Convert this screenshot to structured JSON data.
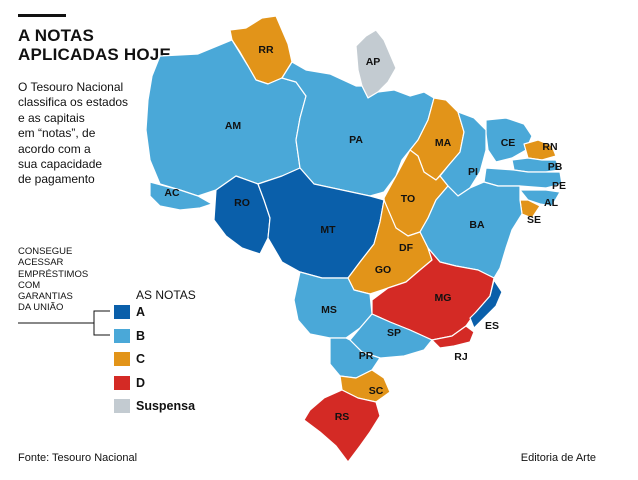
{
  "title": [
    "A NOTAS",
    "APLICADAS HOJE"
  ],
  "description": [
    "O Tesouro Nacional",
    "classifica os estados",
    "e as capitais",
    "em “notas”, de",
    "acordo com a",
    "sua capacidade",
    "de pagamento"
  ],
  "note": [
    "CONSEGUE",
    "ACESSAR",
    "EMPRÉSTIMOS",
    "COM",
    "GARANTIAS",
    "DA UNIÃO"
  ],
  "legend": {
    "title": "AS NOTAS",
    "items": [
      {
        "label": "A",
        "color": "#0a5faa"
      },
      {
        "label": "B",
        "color": "#4aa8d8"
      },
      {
        "label": "C",
        "color": "#e29419"
      },
      {
        "label": "D",
        "color": "#d42a25"
      },
      {
        "label": "Suspensa",
        "color": "#c3cbd1"
      }
    ]
  },
  "states": [
    {
      "code": "RR",
      "grade": "C"
    },
    {
      "code": "AP",
      "grade": "Suspensa"
    },
    {
      "code": "AM",
      "grade": "B"
    },
    {
      "code": "PA",
      "grade": "B"
    },
    {
      "code": "MA",
      "grade": "C"
    },
    {
      "code": "CE",
      "grade": "B"
    },
    {
      "code": "RN",
      "grade": "C"
    },
    {
      "code": "PB",
      "grade": "B"
    },
    {
      "code": "PE",
      "grade": "B"
    },
    {
      "code": "AL",
      "grade": "B"
    },
    {
      "code": "SE",
      "grade": "C"
    },
    {
      "code": "PI",
      "grade": "B"
    },
    {
      "code": "AC",
      "grade": "B"
    },
    {
      "code": "RO",
      "grade": "A"
    },
    {
      "code": "MT",
      "grade": "A"
    },
    {
      "code": "TO",
      "grade": "C"
    },
    {
      "code": "BA",
      "grade": "B"
    },
    {
      "code": "DF",
      "grade": "C"
    },
    {
      "code": "GO",
      "grade": "C"
    },
    {
      "code": "MG",
      "grade": "D"
    },
    {
      "code": "ES",
      "grade": "A"
    },
    {
      "code": "MS",
      "grade": "B"
    },
    {
      "code": "SP",
      "grade": "B"
    },
    {
      "code": "RJ",
      "grade": "D"
    },
    {
      "code": "PR",
      "grade": "B"
    },
    {
      "code": "SC",
      "grade": "C"
    },
    {
      "code": "RS",
      "grade": "D"
    }
  ],
  "source": "Fonte: Tesouro Nacional",
  "credit": "Editoria de Arte"
}
